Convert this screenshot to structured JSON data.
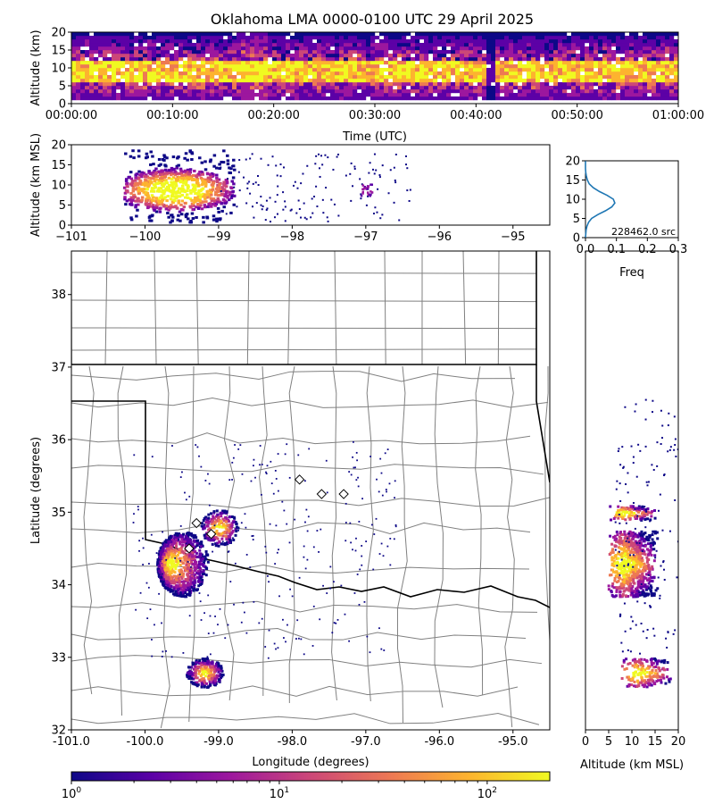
{
  "title": "Oklahoma LMA 0000-0100 UTC 29 April 2025",
  "chart_data": [
    {
      "type": "heatmap",
      "panel": "time-altitude",
      "xlabel": "Time (UTC)",
      "ylabel": "Altitude (km)",
      "xlim": [
        "00:00:00",
        "01:00:00"
      ],
      "ylim": [
        0,
        20
      ],
      "x_ticks": [
        "00:00:00",
        "00:10:00",
        "00:20:00",
        "00:30:00",
        "00:40:00",
        "00:50:00",
        "01:00:00"
      ],
      "y_ticks": [
        "0",
        "5",
        "10",
        "15",
        "20"
      ],
      "core_altitude_km": [
        6,
        12
      ]
    },
    {
      "type": "heatmap",
      "panel": "longitude-altitude",
      "xlabel": "",
      "ylabel": "Altitude (km MSL)",
      "xlim": [
        -101,
        -94.5
      ],
      "ylim": [
        0,
        20
      ],
      "x_ticks": [
        "−101",
        "−100",
        "−99",
        "−98",
        "−97",
        "−96",
        "−95"
      ],
      "y_ticks": [
        "0",
        "5",
        "10",
        "15",
        "20"
      ],
      "clusters": [
        {
          "lon": -99.6,
          "alt_km": 9
        },
        {
          "lon": -97.0,
          "alt_km": 9
        }
      ]
    },
    {
      "type": "line",
      "panel": "altitude-histogram",
      "xlabel": "Freq",
      "xlim": [
        0.0,
        0.3
      ],
      "ylim": [
        0,
        20
      ],
      "x_ticks": [
        "0.0",
        "0.1",
        "0.2",
        "0.3"
      ],
      "y_ticks": [
        "0",
        "5",
        "10",
        "15",
        "20"
      ],
      "annotation": "228462.0 src",
      "series": [
        {
          "color": "#1f77b4",
          "x": [
            0.0,
            0.002,
            0.005,
            0.01,
            0.02,
            0.04,
            0.065,
            0.085,
            0.095,
            0.09,
            0.07,
            0.045,
            0.025,
            0.012,
            0.006,
            0.003,
            0.001,
            0.0,
            0.0
          ],
          "y": [
            0,
            2,
            3,
            4,
            5,
            6,
            7,
            8,
            9,
            10,
            11,
            12,
            13,
            14,
            15,
            16,
            17,
            18,
            20
          ]
        }
      ]
    },
    {
      "type": "heatmap",
      "panel": "plan-view",
      "xlabel": "Longitude (degrees)",
      "ylabel": "Latitude (degrees)",
      "xlim": [
        -101,
        -94.5
      ],
      "ylim": [
        32,
        38.6
      ],
      "x_ticks": [
        "-101.0",
        "-100.0",
        "-99.0",
        "-98.0",
        "-97.0",
        "-96.0",
        "-95.0"
      ],
      "y_ticks": [
        "32",
        "33",
        "34",
        "35",
        "36",
        "37",
        "38"
      ],
      "clusters": [
        {
          "lon": -99.7,
          "lat": 34.3
        },
        {
          "lon": -99.2,
          "lat": 32.8
        },
        {
          "lon": -99.0,
          "lat": 34.8
        }
      ],
      "stations": [
        {
          "lon": -99.3,
          "lat": 34.85
        },
        {
          "lon": -99.1,
          "lat": 34.7
        },
        {
          "lon": -99.4,
          "lat": 34.5
        },
        {
          "lon": -97.9,
          "lat": 35.45
        },
        {
          "lon": -97.6,
          "lat": 35.25
        },
        {
          "lon": -97.3,
          "lat": 35.25
        }
      ]
    },
    {
      "type": "heatmap",
      "panel": "altitude-latitude",
      "xlabel": "Altitude (km MSL)",
      "xlim": [
        0,
        20
      ],
      "ylim": [
        32,
        38.6
      ],
      "x_ticks": [
        "0",
        "5",
        "10",
        "15",
        "20"
      ]
    }
  ],
  "colorbar": {
    "scale": "log",
    "range": [
      1,
      200
    ],
    "ticks": [
      {
        "base": "10",
        "exp": "0"
      },
      {
        "base": "10",
        "exp": "1"
      },
      {
        "base": "10",
        "exp": "2"
      }
    ],
    "colors": [
      "#0d0887",
      "#5c01a6",
      "#9c179e",
      "#cc4778",
      "#ed7953",
      "#fdb32f",
      "#f0f921"
    ]
  }
}
